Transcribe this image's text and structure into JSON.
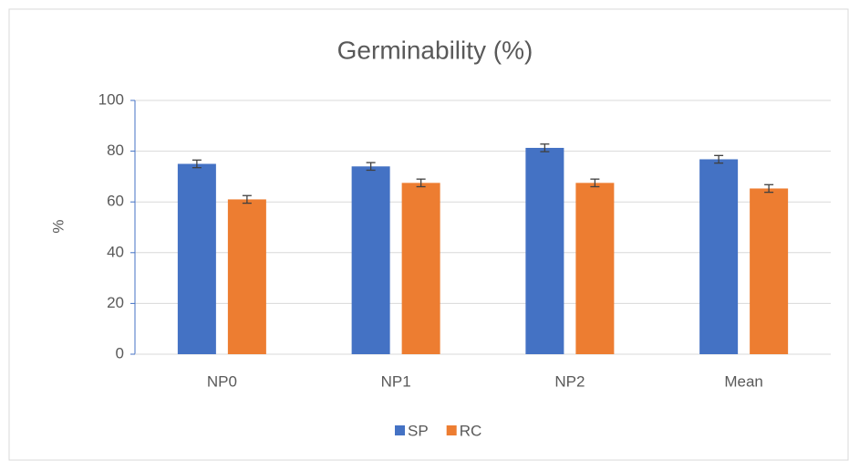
{
  "chart_data": {
    "type": "bar",
    "title": "Germinability (%)",
    "y_label": "%",
    "categories": [
      "NP0",
      "NP1",
      "NP2",
      "Mean"
    ],
    "series": [
      {
        "name": "SP",
        "color": "#4472c4",
        "values": [
          75,
          74,
          81.3,
          76.8
        ],
        "errors": [
          1.5,
          1.5,
          1.5,
          1.5
        ]
      },
      {
        "name": "RC",
        "color": "#ed7d31",
        "values": [
          61,
          67.5,
          67.5,
          65.3
        ],
        "errors": [
          1.5,
          1.5,
          1.5,
          1.5
        ]
      }
    ],
    "ylim": [
      0,
      100
    ],
    "yticks": [
      0,
      20,
      40,
      60,
      80,
      100
    ],
    "grid": true,
    "legend": "bottom"
  }
}
